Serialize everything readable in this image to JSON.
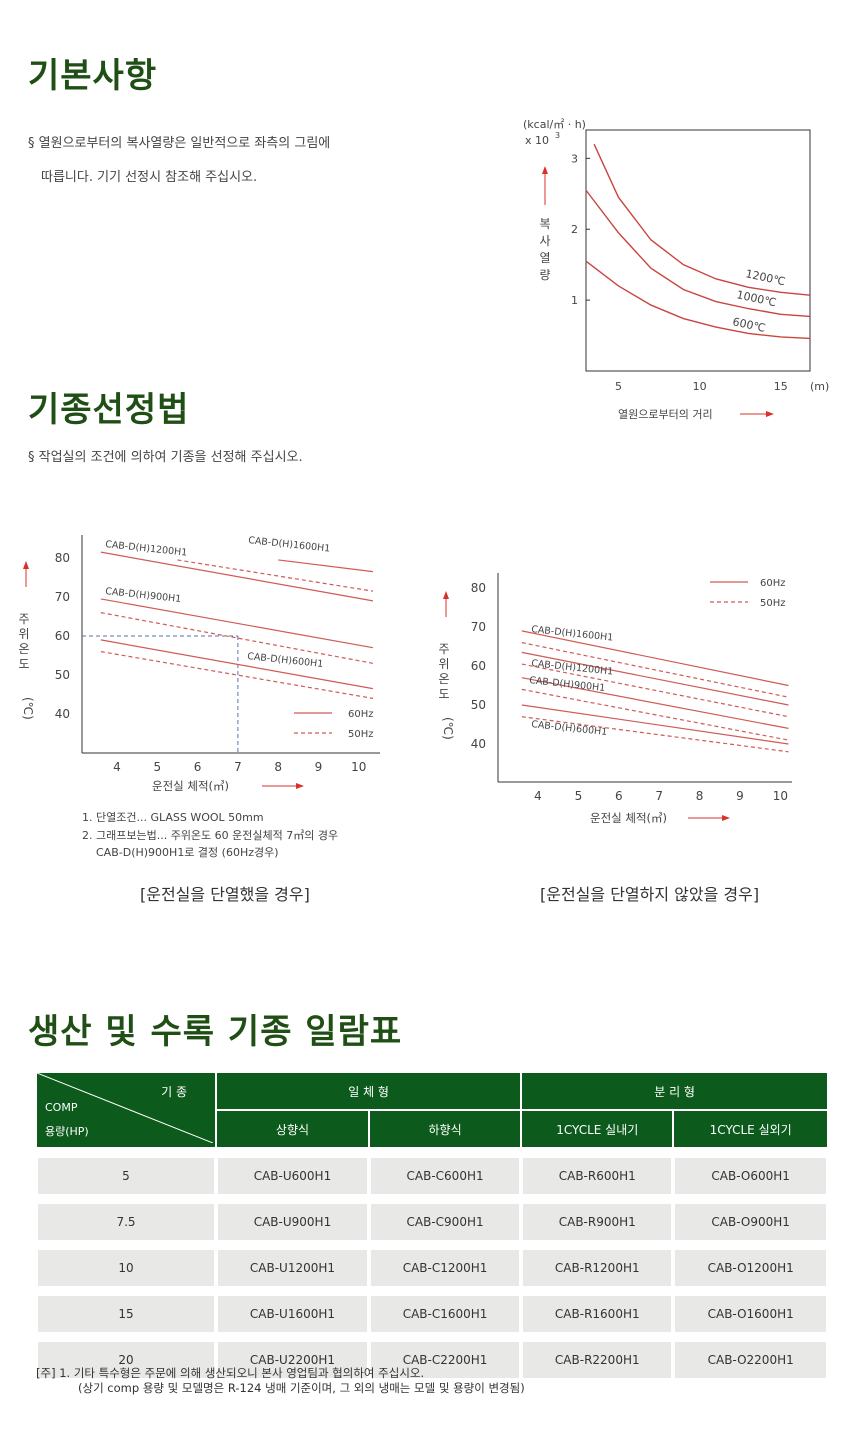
{
  "sec1": {
    "title": "기본사항",
    "line1": "§  열원으로부터의 복사열량은 일반적으로 좌측의 그림에",
    "line2": "따릅니다. 기기 선정시 참조해 주십시오."
  },
  "sec2": {
    "title": "기종선정법",
    "line1": "§  작업실의 조건에 의하여 기종을 선정해 주십시오."
  },
  "sec3": {
    "title": "생산 및 수록 기종 일람표"
  },
  "chart1": {
    "unit1": "(kcal/㎡ · h)",
    "unit2": "x 10",
    "exp": "3",
    "ylabel": "복사열량",
    "xlabel": "열원으로부터의 거리",
    "xunit": "(m)"
  },
  "chart2": {
    "ylabel": "주위온도",
    "ylabel_unit": "(℃)",
    "xlabel": "운전실 체적(㎥)",
    "note1": "1. 단열조건... GLASS WOOL 50mm",
    "note2": "2. 그래프보는법... 주위온도 60 운전실체적 7㎥의 경우",
    "note3": "CAB-D(H)900H1로 결정 (60Hz경우)",
    "caption": "[운전실을 단열했을 경우]"
  },
  "chart3": {
    "ylabel": "주위온도",
    "ylabel_unit": "(℃)",
    "xlabel": "운전실 체적(㎥)",
    "caption": "[운전실을 단열하지 않았을 경우]"
  },
  "chart_data": [
    {
      "type": "line",
      "xlabel": "열원으로부터의 거리",
      "ylabel": "복사열량",
      "xunit": "(m)",
      "yunit": "(kcal/㎡ · h) x 10^3",
      "xticks": [
        5,
        10,
        15
      ],
      "yticks": [
        1,
        2,
        3
      ],
      "xlim": [
        3,
        16.8
      ],
      "ylim": [
        0,
        3.4
      ],
      "series": [
        {
          "name": "1200℃",
          "x": [
            3.5,
            5,
            7,
            9,
            11,
            13,
            15,
            16.8
          ],
          "y": [
            3.2,
            2.45,
            1.85,
            1.5,
            1.3,
            1.18,
            1.11,
            1.07
          ]
        },
        {
          "name": "1000℃",
          "x": [
            3,
            5,
            7,
            9,
            11,
            13,
            15,
            16.8
          ],
          "y": [
            2.55,
            1.95,
            1.45,
            1.15,
            0.98,
            0.88,
            0.8,
            0.77
          ]
        },
        {
          "name": "600℃",
          "x": [
            3,
            5,
            7,
            9,
            11,
            13,
            15,
            16.8
          ],
          "y": [
            1.55,
            1.2,
            0.93,
            0.74,
            0.62,
            0.53,
            0.48,
            0.46
          ]
        }
      ]
    },
    {
      "type": "line",
      "xlabel": "운전실 체적(㎥)",
      "ylabel": "주위온도(℃)",
      "xticks": [
        4,
        5,
        6,
        7,
        8,
        9,
        10
      ],
      "yticks": [
        40,
        50,
        60,
        70,
        80
      ],
      "xlim": [
        3.4,
        10.35
      ],
      "ylim": [
        32,
        86
      ],
      "legend": [
        "60Hz",
        "50Hz"
      ],
      "series": [
        {
          "name": "CAB-D(H)1200H1",
          "hz": "60Hz",
          "x": [
            3.6,
            10.35
          ],
          "y": [
            81.5,
            69
          ]
        },
        {
          "name": "CAB-D(H)1200H1",
          "hz": "50Hz",
          "x": [
            5.5,
            10.35
          ],
          "y": [
            79.5,
            71.5
          ]
        },
        {
          "name": "CAB-D(H)1600H1",
          "hz": "60Hz",
          "x": [
            8,
            10.35
          ],
          "y": [
            79.5,
            76.5
          ]
        },
        {
          "name": "CAB-D(H)900H1",
          "hz": "60Hz",
          "x": [
            3.6,
            10.35
          ],
          "y": [
            69.5,
            57
          ]
        },
        {
          "name": "CAB-D(H)900H1",
          "hz": "50Hz",
          "x": [
            3.6,
            10.35
          ],
          "y": [
            66,
            53
          ]
        },
        {
          "name": "CAB-D(H)600H1",
          "hz": "60Hz",
          "x": [
            3.6,
            10.35
          ],
          "y": [
            59,
            46.5
          ]
        },
        {
          "name": "CAB-D(H)600H1",
          "hz": "50Hz",
          "x": [
            3.6,
            10.35
          ],
          "y": [
            56,
            44
          ]
        }
      ]
    },
    {
      "type": "line",
      "xlabel": "운전실 체적(㎥)",
      "ylabel": "주위온도(℃)",
      "xticks": [
        4,
        5,
        6,
        7,
        8,
        9,
        10
      ],
      "yticks": [
        40,
        50,
        60,
        70,
        80
      ],
      "xlim": [
        3.4,
        10.35
      ],
      "ylim": [
        32,
        86
      ],
      "legend": [
        "60Hz",
        "50Hz"
      ],
      "series": [
        {
          "name": "CAB-D(H)1600H1",
          "hz": "60Hz",
          "x": [
            3.6,
            10.2
          ],
          "y": [
            69,
            55
          ]
        },
        {
          "name": "CAB-D(H)1600H1",
          "hz": "50Hz",
          "x": [
            3.6,
            10.2
          ],
          "y": [
            66,
            52
          ]
        },
        {
          "name": "CAB-D(H)1200H1",
          "hz": "60Hz",
          "x": [
            3.6,
            10.2
          ],
          "y": [
            63.5,
            50
          ]
        },
        {
          "name": "CAB-D(H)1200H1",
          "hz": "50Hz",
          "x": [
            3.6,
            10.2
          ],
          "y": [
            60.5,
            47
          ]
        },
        {
          "name": "CAB-D(H)900H1",
          "hz": "60Hz",
          "x": [
            3.6,
            10.2
          ],
          "y": [
            57,
            44
          ]
        },
        {
          "name": "CAB-D(H)900H1",
          "hz": "50Hz",
          "x": [
            3.6,
            10.2
          ],
          "y": [
            54,
            41
          ]
        },
        {
          "name": "CAB-D(H)600H1",
          "hz": "60Hz",
          "x": [
            3.6,
            10.2
          ],
          "y": [
            50,
            40
          ]
        },
        {
          "name": "CAB-D(H)600H1",
          "hz": "50Hz",
          "x": [
            3.6,
            10.2
          ],
          "y": [
            47,
            38
          ]
        }
      ]
    }
  ],
  "chart2_labels": [
    "CAB-D(H)1200H1",
    "CAB-D(H)1600H1",
    "CAB-D(H)900H1",
    "CAB-D(H)600H1"
  ],
  "chart3_labels": [
    "CAB-D(H)1600H1",
    "CAB-D(H)1200H1",
    "CAB-D(H)900H1",
    "CAB-D(H)600H1"
  ],
  "legend": {
    "hz60": "60Hz",
    "hz50": "50Hz"
  },
  "table": {
    "corner_top": "기  종",
    "corner_mid": "COMP",
    "corner_bot": "용량(HP)",
    "group1": "일 체 형",
    "group2": "분 리 형",
    "cols": [
      "상향식",
      "하향식",
      "1CYCLE 실내기",
      "1CYCLE 실외기"
    ],
    "rows": [
      [
        "5",
        "CAB-U600H1",
        "CAB-C600H1",
        "CAB-R600H1",
        "CAB-O600H1"
      ],
      [
        "7.5",
        "CAB-U900H1",
        "CAB-C900H1",
        "CAB-R900H1",
        "CAB-O900H1"
      ],
      [
        "10",
        "CAB-U1200H1",
        "CAB-C1200H1",
        "CAB-R1200H1",
        "CAB-O1200H1"
      ],
      [
        "15",
        "CAB-U1600H1",
        "CAB-C1600H1",
        "CAB-R1600H1",
        "CAB-O1600H1"
      ],
      [
        "20",
        "CAB-U2200H1",
        "CAB-C2200H1",
        "CAB-R2200H1",
        "CAB-O2200H1"
      ]
    ]
  },
  "note": {
    "line1": "[주] 1. 기타 특수형은 주문에 의해 생산되오니 본사 영업팀과 협의하여 주십시오.",
    "line2": "(상기 comp 용량 및 모델명은 R-124 냉매 기준이며, 그 외의 냉매는 모델 및 용량이 변경됨)"
  }
}
